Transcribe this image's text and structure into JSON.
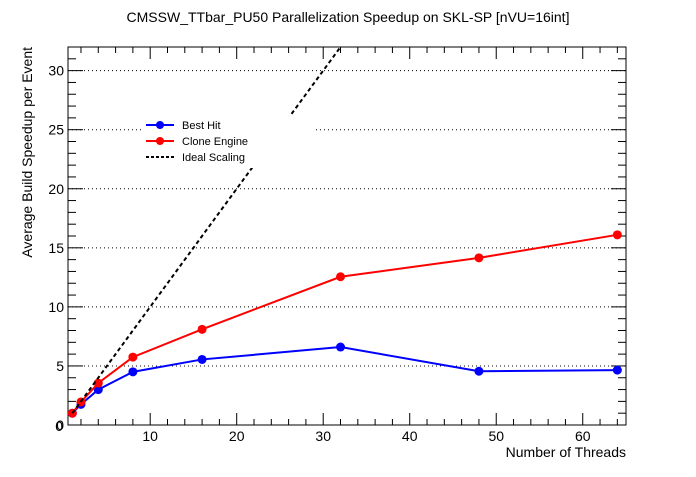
{
  "chart_data": {
    "type": "line",
    "title": "CMSSW_TTbar_PU50 Parallelization Speedup on SKL-SP [nVU=16int]",
    "xlabel": "Number of Threads",
    "ylabel": "Average Build Speedup per Event",
    "xlim": [
      0.5,
      65
    ],
    "ylim": [
      0,
      32
    ],
    "xticks": [
      0,
      10,
      20,
      30,
      40,
      50,
      60
    ],
    "yticks": [
      0,
      5,
      10,
      15,
      20,
      25,
      30
    ],
    "grid": "horizontal-dotted",
    "legend": "upper-left",
    "series": [
      {
        "name": "Best Hit",
        "color": "#0000ff",
        "marker": "circle",
        "x": [
          1,
          2,
          4,
          8,
          16,
          32,
          48,
          64
        ],
        "y": [
          1.0,
          1.75,
          3.0,
          4.5,
          5.55,
          6.6,
          4.55,
          4.65
        ]
      },
      {
        "name": "Clone Engine",
        "color": "#ff0000",
        "marker": "circle",
        "x": [
          1,
          2,
          4,
          8,
          16,
          32,
          48,
          64
        ],
        "y": [
          1.0,
          1.95,
          3.55,
          5.75,
          8.1,
          12.55,
          14.15,
          16.1
        ]
      },
      {
        "name": "Ideal Scaling",
        "color": "#000000",
        "style": "dashed",
        "x": [
          1,
          32
        ],
        "y": [
          1,
          32
        ]
      }
    ]
  }
}
